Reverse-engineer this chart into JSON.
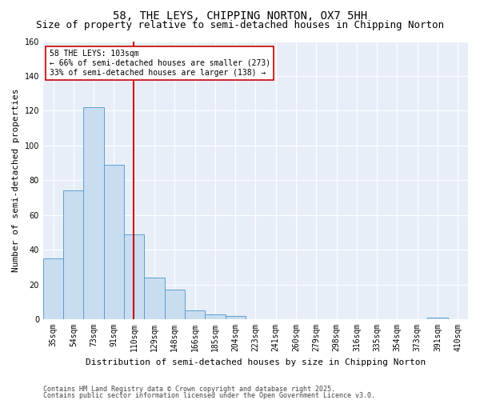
{
  "title": "58, THE LEYS, CHIPPING NORTON, OX7 5HH",
  "subtitle": "Size of property relative to semi-detached houses in Chipping Norton",
  "xlabel": "Distribution of semi-detached houses by size in Chipping Norton",
  "ylabel": "Number of semi-detached properties",
  "bin_labels": [
    "35sqm",
    "54sqm",
    "73sqm",
    "91sqm",
    "110sqm",
    "129sqm",
    "148sqm",
    "166sqm",
    "185sqm",
    "204sqm",
    "223sqm",
    "241sqm",
    "260sqm",
    "279sqm",
    "298sqm",
    "316sqm",
    "335sqm",
    "354sqm",
    "373sqm",
    "391sqm",
    "410sqm"
  ],
  "bar_heights": [
    35,
    74,
    122,
    89,
    49,
    24,
    17,
    5,
    3,
    2,
    0,
    0,
    0,
    0,
    0,
    0,
    0,
    0,
    0,
    1,
    0
  ],
  "bar_color": "#c9ddf0",
  "bar_edge_color": "#5a9fd4",
  "property_value": 103,
  "property_bin_index": 4,
  "annotation_title": "58 THE LEYS: 103sqm",
  "annotation_line1": "← 66% of semi-detached houses are smaller (273)",
  "annotation_line2": "33% of semi-detached houses are larger (138) →",
  "red_line_color": "#cc0000",
  "annotation_box_color": "#ffffff",
  "annotation_box_edge": "#cc0000",
  "ylim": [
    0,
    160
  ],
  "yticks": [
    0,
    20,
    40,
    60,
    80,
    100,
    120,
    140,
    160
  ],
  "footer1": "Contains HM Land Registry data © Crown copyright and database right 2025.",
  "footer2": "Contains public sector information licensed under the Open Government Licence v3.0.",
  "bg_color": "#e8eef8",
  "fig_bg_color": "#ffffff",
  "grid_color": "#ffffff",
  "title_fontsize": 10,
  "subtitle_fontsize": 9,
  "axis_label_fontsize": 8,
  "tick_fontsize": 7,
  "footer_fontsize": 6,
  "n_bins": 21
}
